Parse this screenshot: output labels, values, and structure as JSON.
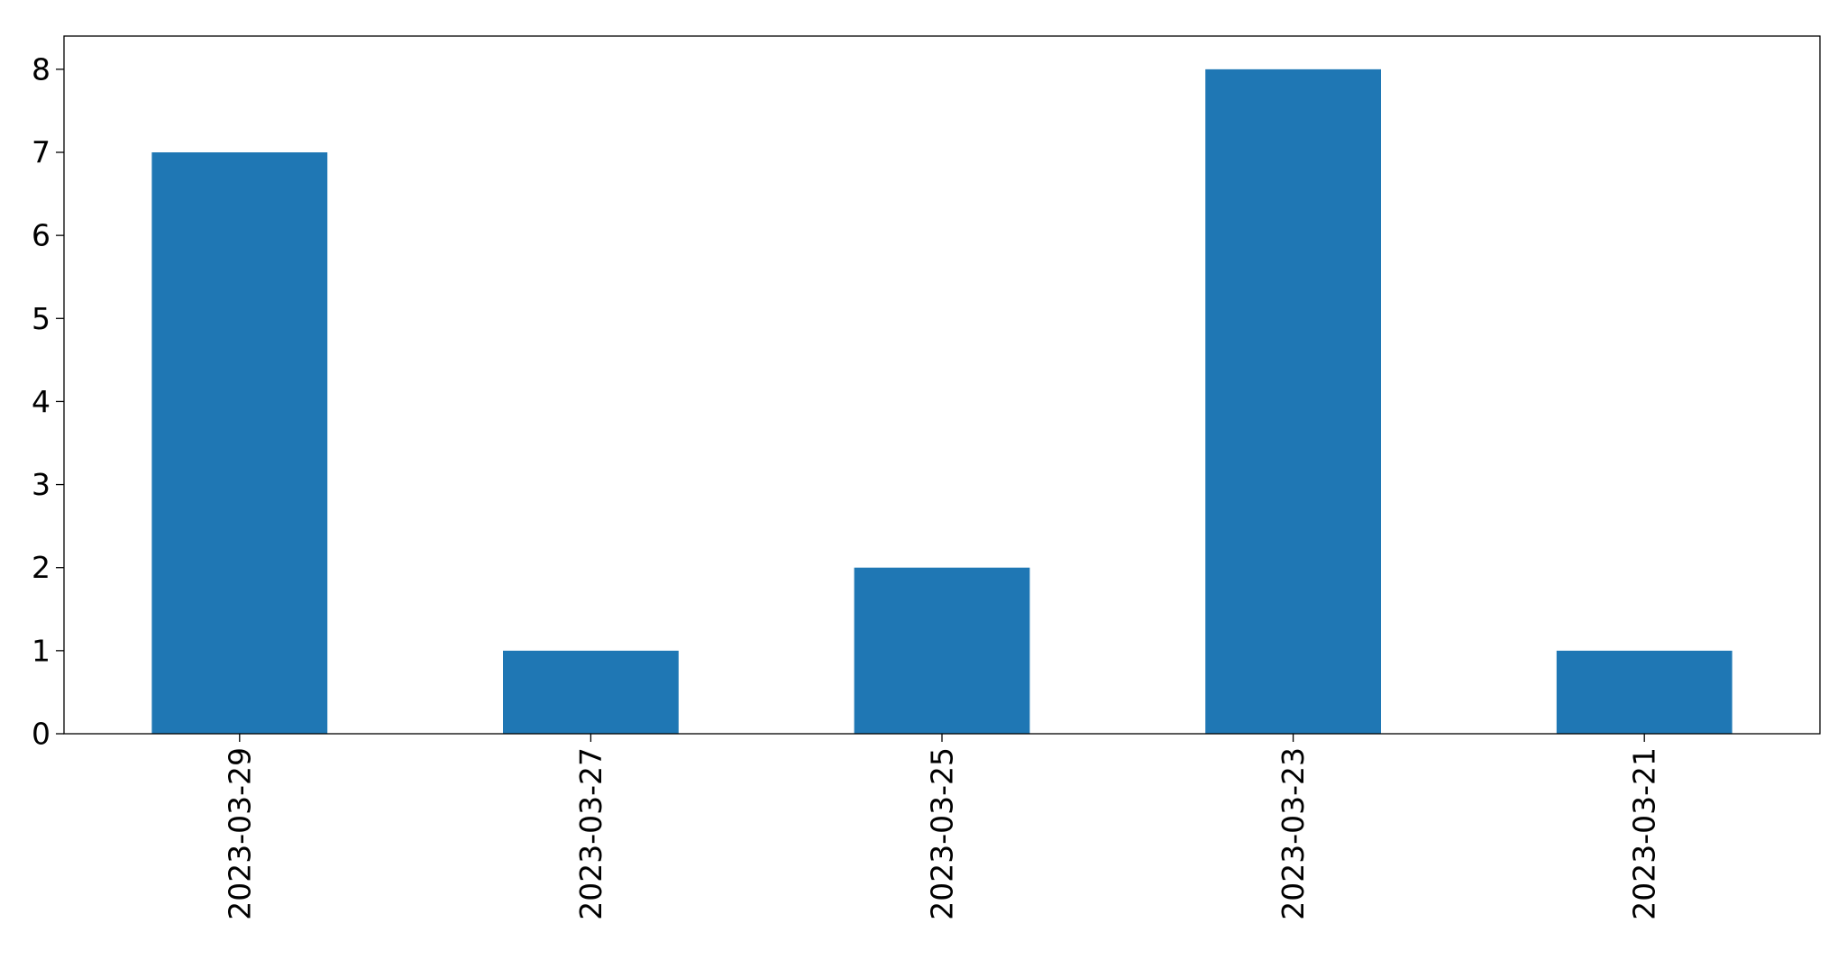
{
  "chart_data": {
    "type": "bar",
    "title": "",
    "xlabel": "",
    "ylabel": "",
    "categories": [
      "2023-03-29",
      "2023-03-27",
      "2023-03-25",
      "2023-03-23",
      "2023-03-21"
    ],
    "values": [
      7,
      1,
      2,
      8,
      1
    ],
    "ylim": [
      0,
      8.4
    ],
    "yticks": [
      0,
      1,
      2,
      3,
      4,
      5,
      6,
      7,
      8
    ],
    "grid": false,
    "legend": "none",
    "bar_color": "#1f77b4"
  }
}
